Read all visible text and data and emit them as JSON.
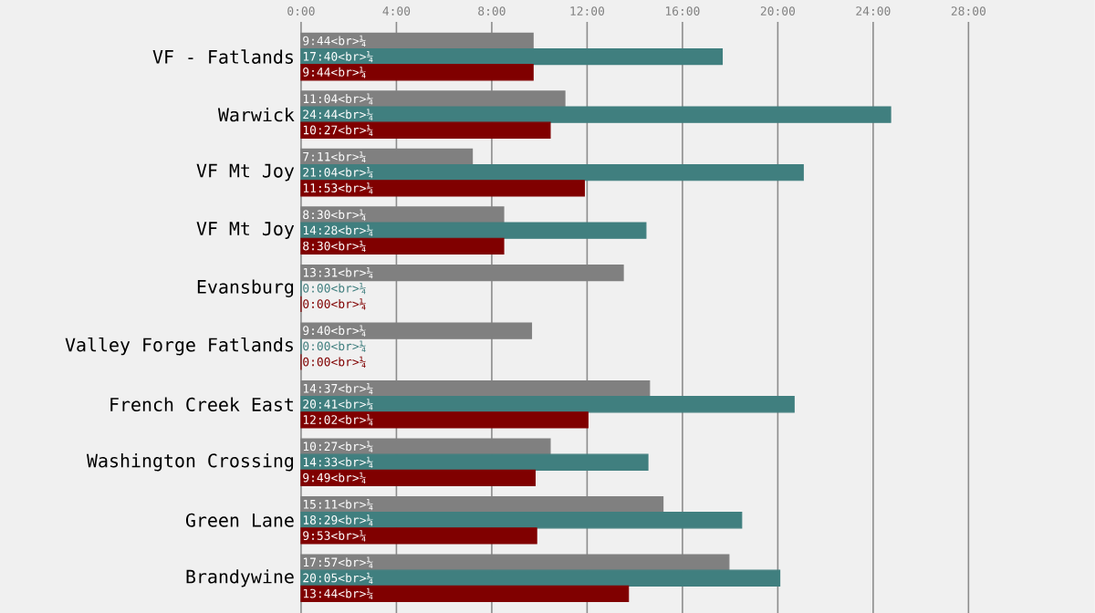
{
  "chart_data": {
    "type": "bar",
    "orientation": "horizontal",
    "categories": [
      "VF - Fatlands",
      "Warwick",
      "VF Mt Joy",
      "VF Mt Joy",
      "Evansburg",
      "Valley Forge Fatlands",
      "French Creek East",
      "Washington Crossing",
      "Green Lane",
      "Brandywine"
    ],
    "series": [
      {
        "color": "#808080",
        "values": [
          9.733,
          11.067,
          7.183,
          8.5,
          13.517,
          9.667,
          14.617,
          10.45,
          15.183,
          17.95
        ],
        "value_labels": [
          "9:44<br>¼",
          "11:04<br>¼",
          "7:11<br>¼",
          "8:30<br>¼",
          "13:31<br>¼",
          "9:40<br>¼",
          "14:37<br>¼",
          "10:27<br>¼",
          "15:11<br>¼",
          "17:57<br>¼"
        ]
      },
      {
        "color": "#407f7f",
        "values": [
          17.667,
          24.733,
          21.067,
          14.467,
          0,
          0,
          20.683,
          14.55,
          18.483,
          20.083
        ],
        "value_labels": [
          "17:40<br>¼",
          "24:44<br>¼",
          "21:04<br>¼",
          "14:28<br>¼",
          "0:00<br>¼",
          "0:00<br>¼",
          "20:41<br>¼",
          "14:33<br>¼",
          "18:29<br>¼",
          "20:05<br>¼"
        ]
      },
      {
        "color": "#800000",
        "values": [
          9.733,
          10.45,
          11.883,
          8.5,
          0,
          0,
          12.033,
          9.817,
          9.883,
          13.733
        ],
        "value_labels": [
          "9:44<br>¼",
          "10:27<br>¼",
          "11:53<br>¼",
          "8:30<br>¼",
          "0:00<br>¼",
          "0:00<br>¼",
          "12:02<br>¼",
          "9:49<br>¼",
          "9:53<br>¼",
          "13:44<br>¼"
        ]
      }
    ],
    "xlim": [
      0,
      33.3
    ],
    "xticks": [
      {
        "value": 0,
        "label": "0:00"
      },
      {
        "value": 4,
        "label": "4:00"
      },
      {
        "value": 8,
        "label": "8:00"
      },
      {
        "value": 12,
        "label": "12:00"
      },
      {
        "value": 16,
        "label": "16:00"
      },
      {
        "value": 20,
        "label": "20:00"
      },
      {
        "value": 24,
        "label": "24:00"
      },
      {
        "value": 28,
        "label": "28:00"
      }
    ],
    "grid": "x"
  }
}
